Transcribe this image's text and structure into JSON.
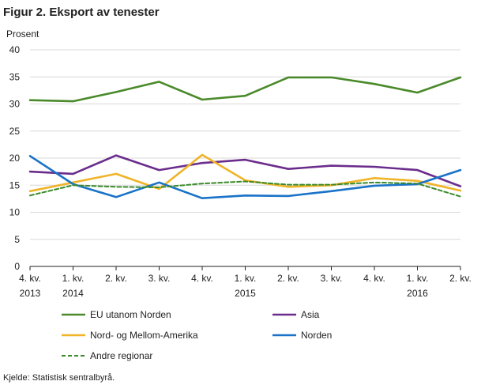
{
  "chart_data": {
    "type": "line",
    "title": "Figur 2. Eksport av tenester",
    "ylabel": "Prosent",
    "ylim": [
      0,
      40
    ],
    "yticks": [
      0,
      5,
      10,
      15,
      20,
      25,
      30,
      35,
      40
    ],
    "grid": true,
    "legend_position": "bottom",
    "categories": [
      [
        "4. kv.",
        "2013"
      ],
      [
        "1. kv.",
        "2014"
      ],
      [
        "2. kv.",
        ""
      ],
      [
        "3. kv.",
        ""
      ],
      [
        "4. kv.",
        ""
      ],
      [
        "1. kv.",
        "2015"
      ],
      [
        "2. kv.",
        ""
      ],
      [
        "3. kv.",
        ""
      ],
      [
        "4. kv.",
        ""
      ],
      [
        "1. kv.",
        "2016"
      ],
      [
        "2. kv.",
        ""
      ]
    ],
    "series": [
      {
        "name": "EU utanom Norden",
        "color": "#4a8a2a",
        "dash": false,
        "values": [
          30.7,
          30.5,
          32.2,
          34.1,
          30.8,
          31.5,
          34.9,
          34.9,
          33.7,
          32.1,
          34.9
        ]
      },
      {
        "name": "Asia",
        "color": "#6b2d8c",
        "dash": false,
        "values": [
          17.5,
          17.1,
          20.5,
          17.8,
          19.1,
          19.7,
          18.0,
          18.6,
          18.4,
          17.8,
          14.8
        ]
      },
      {
        "name": "Nord- og Mellom-Amerika",
        "color": "#f0b428",
        "dash": false,
        "values": [
          13.9,
          15.5,
          17.1,
          14.3,
          20.6,
          15.9,
          14.7,
          15.0,
          16.3,
          15.8,
          14.0
        ]
      },
      {
        "name": "Norden",
        "color": "#1a73c8",
        "dash": false,
        "values": [
          20.4,
          15.2,
          12.8,
          15.5,
          12.6,
          13.1,
          13.0,
          13.9,
          14.9,
          15.2,
          17.8
        ]
      },
      {
        "name": "Andre regionar",
        "color": "#3a8a2a",
        "dash": true,
        "values": [
          13.1,
          15.0,
          14.7,
          14.6,
          15.3,
          15.7,
          15.1,
          15.1,
          15.5,
          15.3,
          12.9
        ]
      }
    ],
    "source": "Kjelde: Statistisk sentralbyrå."
  }
}
